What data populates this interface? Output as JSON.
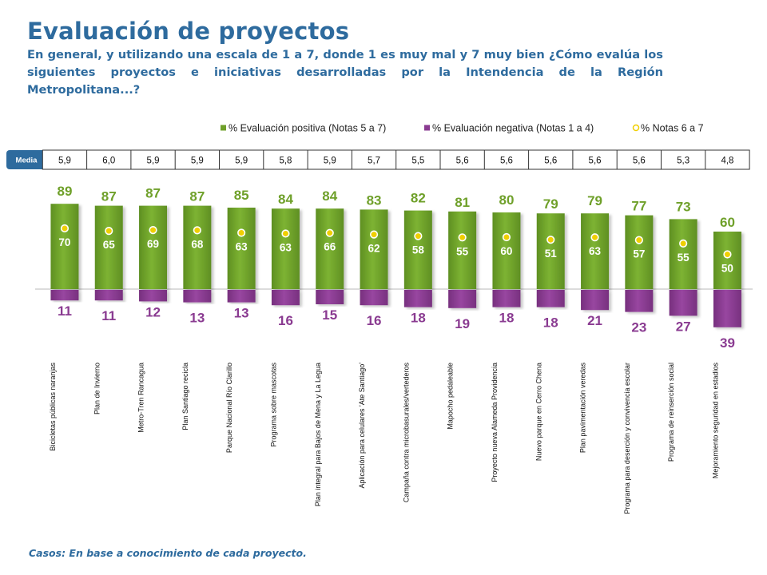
{
  "title": "Evaluación de proyectos",
  "question": "En general, y utilizando una escala de 1 a 7, donde 1 es muy mal y 7 muy bien ¿Cómo evalúa los siguientes proyectos e iniciativas desarrolladas por la Intendencia de la Región Metropolitana...?",
  "footnote": "Casos: En base a conocimiento de cada proyecto.",
  "media_label": "Media",
  "colors": {
    "positive": "#6fa02a",
    "negative": "#8a3b91",
    "notes67": "#f0cf00",
    "title": "#2e6b9e",
    "media_badge": "#2e6b9e"
  },
  "chart_data": {
    "type": "bar",
    "categories": [
      "Bicicletas públicas naranjas",
      "Plan de Invierno",
      "Metro-Tren Rancagua",
      "Plan Santiago recicla",
      "Parque Nacional Río Clarillo",
      "Programa sobre mascotas",
      "Plan integral para Bajos de Mena y La Legua",
      "Aplicación para celulares 'Ate Santiago'",
      "Campaña contra microbasurales/vertederos",
      "Mapocho pedaleable",
      "Proyecto nueva Alameda Providencia",
      "Nuevo parque en Cerro Chena",
      "Plan pavimentación veredas",
      "Programa para deserción y convivencia escolar",
      "Programa de reinserción social",
      "Mejoramiento seguridad en estadios"
    ],
    "series": [
      {
        "name": "% Evaluación positiva (Notas 5 a 7)",
        "values": [
          89,
          87,
          87,
          87,
          85,
          84,
          84,
          83,
          82,
          81,
          80,
          79,
          79,
          77,
          73,
          60
        ]
      },
      {
        "name": "% Evaluación negativa (Notas 1 a 4)",
        "values": [
          11,
          11,
          12,
          13,
          13,
          16,
          15,
          16,
          18,
          19,
          18,
          18,
          21,
          23,
          27,
          39
        ]
      },
      {
        "name": "% Notas 6 a 7",
        "values": [
          70,
          65,
          69,
          68,
          63,
          63,
          66,
          62,
          58,
          55,
          60,
          51,
          63,
          57,
          55,
          50
        ]
      }
    ],
    "media": [
      "5,9",
      "6,0",
      "5,9",
      "5,9",
      "5,9",
      "5,8",
      "5,9",
      "5,7",
      "5,5",
      "5,6",
      "5,6",
      "5,6",
      "5,6",
      "5,6",
      "5,3",
      "4,8"
    ],
    "legend_position": "top-right",
    "grid": false
  }
}
